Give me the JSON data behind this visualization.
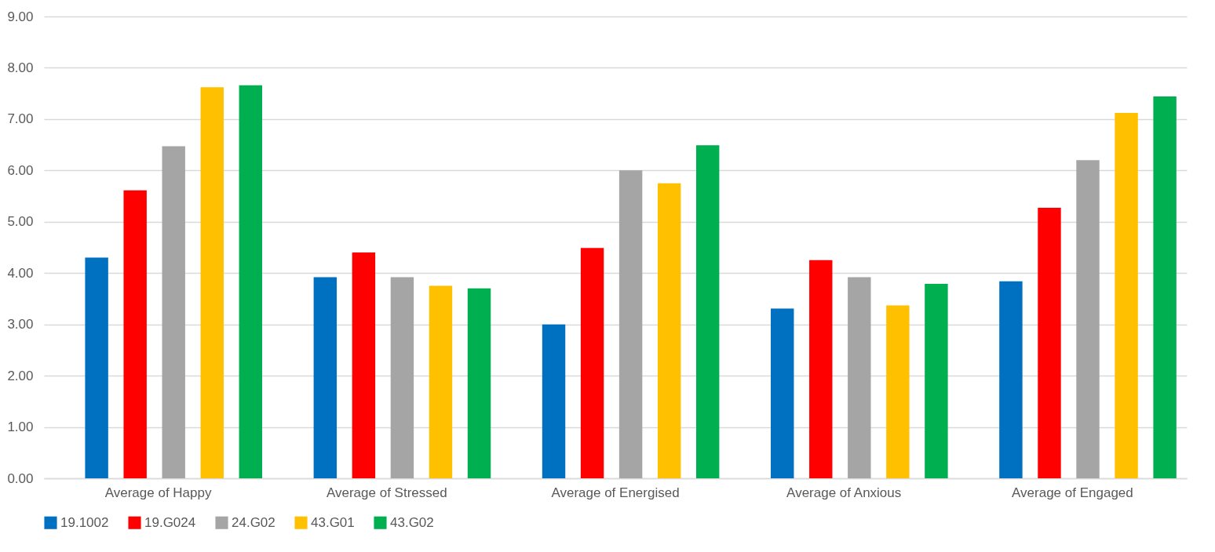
{
  "chart_data": {
    "type": "bar",
    "categories": [
      "Average of Happy",
      "Average of Stressed",
      "Average of Energised",
      "Average of Anxious",
      "Average of Engaged"
    ],
    "series": [
      {
        "name": "19.1002",
        "color": "#0070c0",
        "values": [
          4.3,
          3.92,
          3.0,
          3.31,
          3.84
        ]
      },
      {
        "name": "19.G024",
        "color": "#ff0000",
        "values": [
          5.61,
          4.4,
          4.49,
          4.25,
          5.27
        ]
      },
      {
        "name": "24.G02",
        "color": "#a5a5a5",
        "values": [
          6.47,
          3.92,
          6.0,
          3.92,
          6.2
        ]
      },
      {
        "name": "43.G01",
        "color": "#ffc000",
        "values": [
          7.62,
          3.75,
          5.75,
          3.37,
          7.12
        ]
      },
      {
        "name": "43.G02",
        "color": "#00b050",
        "values": [
          7.66,
          3.7,
          6.49,
          3.79,
          7.44
        ]
      }
    ],
    "ylim": [
      0,
      9
    ],
    "yticks": [
      {
        "value": 0,
        "label": "0.00"
      },
      {
        "value": 1,
        "label": "1.00"
      },
      {
        "value": 2,
        "label": "2.00"
      },
      {
        "value": 3,
        "label": "3.00"
      },
      {
        "value": 4,
        "label": "4.00"
      },
      {
        "value": 5,
        "label": "5.00"
      },
      {
        "value": 6,
        "label": "6.00"
      },
      {
        "value": 7,
        "label": "7.00"
      },
      {
        "value": 8,
        "label": "8.00"
      },
      {
        "value": 9,
        "label": "9.00"
      }
    ],
    "grid": "y",
    "legend": "bottom"
  }
}
